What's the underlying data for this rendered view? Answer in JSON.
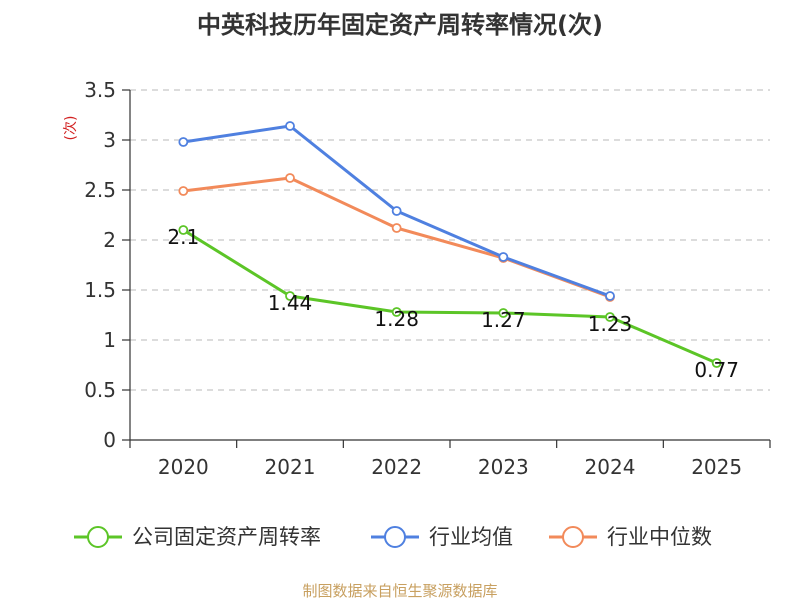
{
  "chart_data": {
    "type": "line",
    "title": "中英科技历年固定资产周转率情况(次)",
    "ylabel": "(次)",
    "xlabel": "",
    "categories": [
      "2020",
      "2021",
      "2022",
      "2023",
      "2024",
      "2025"
    ],
    "ylim": [
      0,
      3.5
    ],
    "yticks": [
      0,
      0.5,
      1,
      1.5,
      2,
      2.5,
      3,
      3.5
    ],
    "ytick_labels": [
      "0",
      "0.5",
      "1",
      "1.5",
      "2",
      "2.5",
      "3",
      "3.5"
    ],
    "grid": true,
    "legend_position": "bottom",
    "series": [
      {
        "name": "公司固定资产周转率",
        "color": "#5cc527",
        "values": [
          2.1,
          1.44,
          1.28,
          1.27,
          1.23,
          0.77
        ],
        "labels": [
          "2.1",
          "1.44",
          "1.28",
          "1.27",
          "1.23",
          "0.77"
        ]
      },
      {
        "name": "行业均值",
        "color": "#4f80e0",
        "values": [
          2.98,
          3.14,
          2.29,
          1.83,
          1.44,
          null
        ]
      },
      {
        "name": "行业中位数",
        "color": "#f28a5a",
        "values": [
          2.49,
          2.62,
          2.12,
          1.82,
          1.43,
          null
        ]
      }
    ],
    "source": "制图数据来自恒生聚源数据库",
    "colors": {
      "axis": "#333333",
      "grid": "#c8c8c8",
      "ylabel": "#d22020",
      "source": "#c8a060"
    }
  }
}
